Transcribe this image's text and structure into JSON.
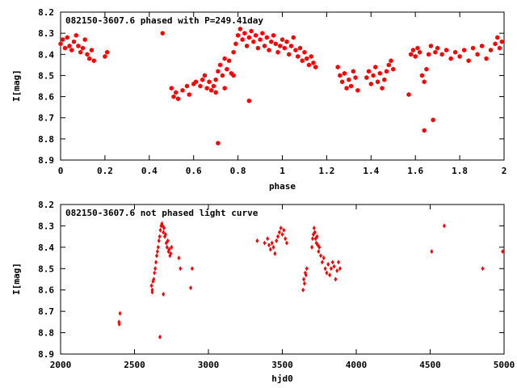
{
  "chart_data": [
    {
      "type": "scatter",
      "title": "082150-3607.6 phased with P=249.41day",
      "xlabel": "phase",
      "ylabel": "I[mag]",
      "xlim": [
        0,
        2
      ],
      "ylim": [
        8.2,
        8.9
      ],
      "y_inverted": true,
      "xticks": [
        "0",
        "0.2",
        "0.4",
        "0.6",
        "0.8",
        "1",
        "1.2",
        "1.4",
        "1.6",
        "1.8",
        "2"
      ],
      "yticks": [
        "8.2",
        "8.3",
        "8.4",
        "8.5",
        "8.6",
        "8.7",
        "8.8",
        "8.9"
      ],
      "marker_color": "#ff0000",
      "marker": "filled-hexagon",
      "series": [
        {
          "name": "",
          "points": [
            [
              0.0,
              8.35
            ],
            [
              0.01,
              8.33
            ],
            [
              0.02,
              8.37
            ],
            [
              0.03,
              8.32
            ],
            [
              0.04,
              8.36
            ],
            [
              0.05,
              8.38
            ],
            [
              0.06,
              8.34
            ],
            [
              0.07,
              8.31
            ],
            [
              0.08,
              8.36
            ],
            [
              0.09,
              8.39
            ],
            [
              0.1,
              8.37
            ],
            [
              0.11,
              8.33
            ],
            [
              0.12,
              8.4
            ],
            [
              0.13,
              8.42
            ],
            [
              0.14,
              8.38
            ],
            [
              0.15,
              8.43
            ],
            [
              0.2,
              8.41
            ],
            [
              0.21,
              8.39
            ],
            [
              0.46,
              8.3
            ],
            [
              0.5,
              8.56
            ],
            [
              0.51,
              8.6
            ],
            [
              0.52,
              8.58
            ],
            [
              0.53,
              8.61
            ],
            [
              0.55,
              8.57
            ],
            [
              0.57,
              8.55
            ],
            [
              0.58,
              8.59
            ],
            [
              0.6,
              8.54
            ],
            [
              0.61,
              8.53
            ],
            [
              0.63,
              8.55
            ],
            [
              0.64,
              8.52
            ],
            [
              0.65,
              8.5
            ],
            [
              0.66,
              8.56
            ],
            [
              0.67,
              8.53
            ],
            [
              0.68,
              8.57
            ],
            [
              0.69,
              8.55
            ],
            [
              0.7,
              8.52
            ],
            [
              0.71,
              8.48
            ],
            [
              0.72,
              8.45
            ],
            [
              0.73,
              8.5
            ],
            [
              0.74,
              8.42
            ],
            [
              0.75,
              8.47
            ],
            [
              0.76,
              8.43
            ],
            [
              0.77,
              8.49
            ],
            [
              0.78,
              8.39
            ],
            [
              0.79,
              8.35
            ],
            [
              0.8,
              8.31
            ],
            [
              0.81,
              8.28
            ],
            [
              0.82,
              8.33
            ],
            [
              0.83,
              8.3
            ],
            [
              0.84,
              8.36
            ],
            [
              0.85,
              8.32
            ],
            [
              0.86,
              8.29
            ],
            [
              0.87,
              8.34
            ],
            [
              0.88,
              8.31
            ],
            [
              0.89,
              8.37
            ],
            [
              0.9,
              8.33
            ],
            [
              0.91,
              8.3
            ],
            [
              0.92,
              8.36
            ],
            [
              0.93,
              8.32
            ],
            [
              0.94,
              8.38
            ],
            [
              0.95,
              8.34
            ],
            [
              0.96,
              8.31
            ],
            [
              0.97,
              8.35
            ],
            [
              0.98,
              8.39
            ],
            [
              0.99,
              8.36
            ],
            [
              1.0,
              8.33
            ],
            [
              1.01,
              8.37
            ],
            [
              1.02,
              8.34
            ],
            [
              1.03,
              8.4
            ],
            [
              1.04,
              8.36
            ],
            [
              1.05,
              8.32
            ],
            [
              1.06,
              8.38
            ],
            [
              1.07,
              8.41
            ],
            [
              1.08,
              8.37
            ],
            [
              1.09,
              8.43
            ],
            [
              1.1,
              8.39
            ],
            [
              1.11,
              8.42
            ],
            [
              1.12,
              8.45
            ],
            [
              1.13,
              8.41
            ],
            [
              1.14,
              8.44
            ],
            [
              1.15,
              8.46
            ],
            [
              0.71,
              8.82
            ],
            [
              0.85,
              8.62
            ],
            [
              0.74,
              8.56
            ],
            [
              0.7,
              8.58
            ],
            [
              0.78,
              8.5
            ],
            [
              1.25,
              8.46
            ],
            [
              1.26,
              8.5
            ],
            [
              1.27,
              8.53
            ],
            [
              1.28,
              8.49
            ],
            [
              1.29,
              8.56
            ],
            [
              1.3,
              8.52
            ],
            [
              1.31,
              8.55
            ],
            [
              1.32,
              8.48
            ],
            [
              1.33,
              8.51
            ],
            [
              1.34,
              8.57
            ],
            [
              1.38,
              8.51
            ],
            [
              1.39,
              8.48
            ],
            [
              1.4,
              8.54
            ],
            [
              1.41,
              8.5
            ],
            [
              1.42,
              8.46
            ],
            [
              1.43,
              8.53
            ],
            [
              1.44,
              8.49
            ],
            [
              1.45,
              8.56
            ],
            [
              1.46,
              8.52
            ],
            [
              1.47,
              8.48
            ],
            [
              1.48,
              8.45
            ],
            [
              1.49,
              8.43
            ],
            [
              1.5,
              8.47
            ],
            [
              1.57,
              8.59
            ],
            [
              1.58,
              8.4
            ],
            [
              1.59,
              8.38
            ],
            [
              1.6,
              8.41
            ],
            [
              1.61,
              8.37
            ],
            [
              1.62,
              8.39
            ],
            [
              1.63,
              8.5
            ],
            [
              1.64,
              8.53
            ],
            [
              1.64,
              8.76
            ],
            [
              1.65,
              8.47
            ],
            [
              1.66,
              8.4
            ],
            [
              1.67,
              8.36
            ],
            [
              1.68,
              8.71
            ],
            [
              1.69,
              8.39
            ],
            [
              1.7,
              8.37
            ],
            [
              1.72,
              8.4
            ],
            [
              1.74,
              8.38
            ],
            [
              1.76,
              8.42
            ],
            [
              1.78,
              8.39
            ],
            [
              1.8,
              8.41
            ],
            [
              1.82,
              8.38
            ],
            [
              1.84,
              8.43
            ],
            [
              1.86,
              8.37
            ],
            [
              1.88,
              8.4
            ],
            [
              1.9,
              8.36
            ],
            [
              1.92,
              8.42
            ],
            [
              1.94,
              8.38
            ],
            [
              1.96,
              8.35
            ],
            [
              1.97,
              8.32
            ],
            [
              1.98,
              8.37
            ],
            [
              1.99,
              8.34
            ]
          ]
        }
      ]
    },
    {
      "type": "scatter",
      "title": "082150-3607.6 not phased light curve",
      "xlabel": "hjd0",
      "ylabel": "I[mag]",
      "xlim": [
        2000,
        5000
      ],
      "ylim": [
        8.2,
        8.9
      ],
      "y_inverted": true,
      "xticks": [
        "2000",
        "2500",
        "3000",
        "3500",
        "4000",
        "4500",
        "5000"
      ],
      "yticks": [
        "8.2",
        "8.3",
        "8.4",
        "8.5",
        "8.6",
        "8.7",
        "8.8",
        "8.9"
      ],
      "marker_color": "#ff0000",
      "marker": "filled-diamond",
      "series": [
        {
          "name": "",
          "points": [
            [
              2395,
              8.75
            ],
            [
              2397,
              8.76
            ],
            [
              2402,
              8.71
            ],
            [
              2615,
              8.58
            ],
            [
              2620,
              8.6
            ],
            [
              2625,
              8.56
            ],
            [
              2630,
              8.55
            ],
            [
              2635,
              8.52
            ],
            [
              2640,
              8.5
            ],
            [
              2645,
              8.47
            ],
            [
              2650,
              8.44
            ],
            [
              2655,
              8.42
            ],
            [
              2660,
              8.4
            ],
            [
              2665,
              8.37
            ],
            [
              2670,
              8.35
            ],
            [
              2675,
              8.32
            ],
            [
              2680,
              8.3
            ],
            [
              2685,
              8.29
            ],
            [
              2690,
              8.3
            ],
            [
              2695,
              8.33
            ],
            [
              2700,
              8.31
            ],
            [
              2705,
              8.35
            ],
            [
              2710,
              8.34
            ],
            [
              2715,
              8.38
            ],
            [
              2720,
              8.4
            ],
            [
              2725,
              8.37
            ],
            [
              2730,
              8.42
            ],
            [
              2735,
              8.41
            ],
            [
              2740,
              8.44
            ],
            [
              2745,
              8.43
            ],
            [
              2750,
              8.4
            ],
            [
              2620,
              8.61
            ],
            [
              2672,
              8.82
            ],
            [
              2695,
              8.62
            ],
            [
              2800,
              8.45
            ],
            [
              2810,
              8.5
            ],
            [
              2880,
              8.59
            ],
            [
              2890,
              8.5
            ],
            [
              3330,
              8.37
            ],
            [
              3380,
              8.38
            ],
            [
              3400,
              8.36
            ],
            [
              3410,
              8.39
            ],
            [
              3420,
              8.41
            ],
            [
              3430,
              8.38
            ],
            [
              3440,
              8.4
            ],
            [
              3450,
              8.43
            ],
            [
              3460,
              8.37
            ],
            [
              3470,
              8.35
            ],
            [
              3480,
              8.33
            ],
            [
              3490,
              8.31
            ],
            [
              3500,
              8.34
            ],
            [
              3510,
              8.32
            ],
            [
              3520,
              8.36
            ],
            [
              3530,
              8.38
            ],
            [
              3640,
              8.6
            ],
            [
              3645,
              8.55
            ],
            [
              3650,
              8.57
            ],
            [
              3655,
              8.52
            ],
            [
              3660,
              8.53
            ],
            [
              3665,
              8.5
            ],
            [
              3700,
              8.4
            ],
            [
              3705,
              8.36
            ],
            [
              3710,
              8.34
            ],
            [
              3715,
              8.31
            ],
            [
              3720,
              8.33
            ],
            [
              3725,
              8.36
            ],
            [
              3730,
              8.38
            ],
            [
              3735,
              8.35
            ],
            [
              3740,
              8.39
            ],
            [
              3745,
              8.42
            ],
            [
              3750,
              8.4
            ],
            [
              3760,
              8.44
            ],
            [
              3770,
              8.47
            ],
            [
              3780,
              8.45
            ],
            [
              3790,
              8.5
            ],
            [
              3800,
              8.52
            ],
            [
              3810,
              8.48
            ],
            [
              3820,
              8.53
            ],
            [
              3830,
              8.5
            ],
            [
              3840,
              8.47
            ],
            [
              3850,
              8.49
            ],
            [
              3860,
              8.55
            ],
            [
              3870,
              8.51
            ],
            [
              3880,
              8.47
            ],
            [
              3890,
              8.5
            ],
            [
              4510,
              8.42
            ],
            [
              4595,
              8.3
            ],
            [
              4855,
              8.5
            ],
            [
              4990,
              8.42
            ]
          ]
        }
      ]
    }
  ]
}
